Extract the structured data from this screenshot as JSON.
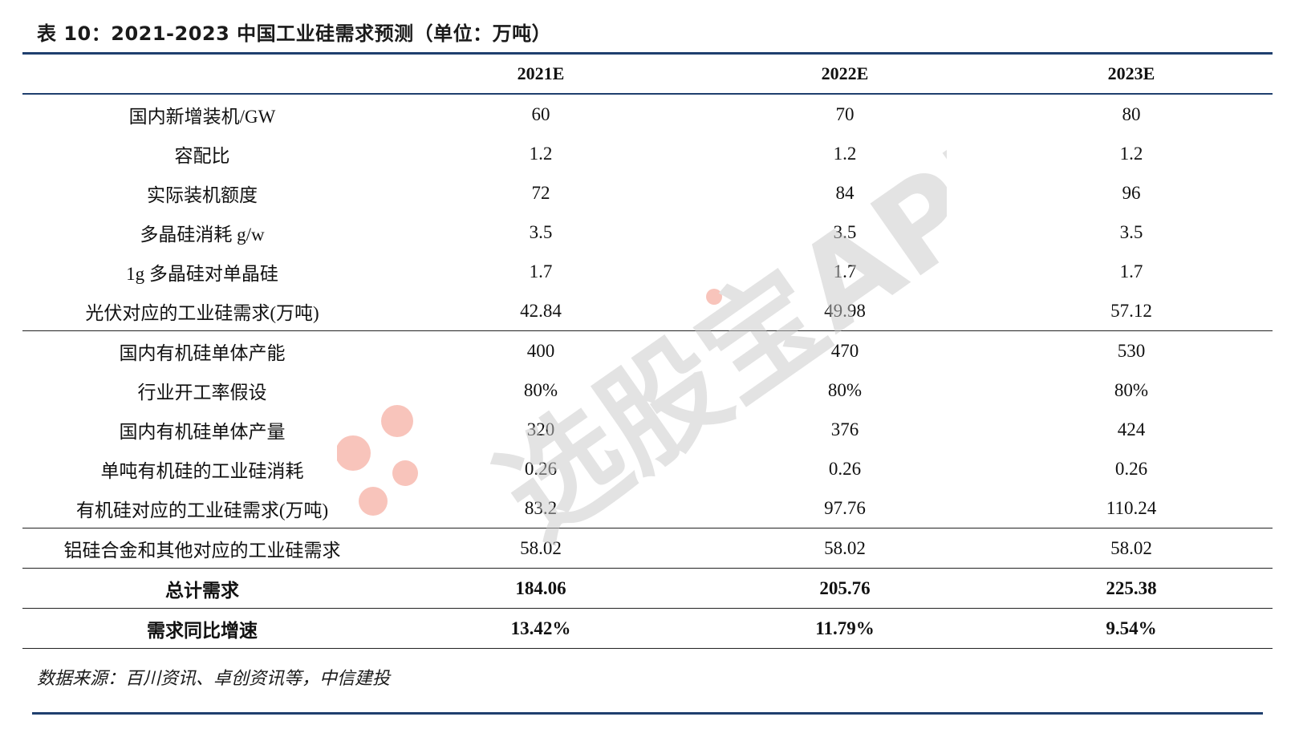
{
  "title": "表 10：2021-2023 中国工业硅需求预测（单位：万吨）",
  "watermark": {
    "text": "选股宝APP",
    "color": "#c8c8c8",
    "dot_color": "#f28a7a"
  },
  "table": {
    "columns": [
      "",
      "2021E",
      "2022E",
      "2023E"
    ],
    "groups": [
      {
        "rows": [
          {
            "label": "国内新增装机/GW",
            "values": [
              "60",
              "70",
              "80"
            ]
          },
          {
            "label": "容配比",
            "values": [
              "1.2",
              "1.2",
              "1.2"
            ]
          },
          {
            "label": "实际装机额度",
            "values": [
              "72",
              "84",
              "96"
            ]
          },
          {
            "label": "多晶硅消耗  g/w",
            "values": [
              "3.5",
              "3.5",
              "3.5"
            ]
          },
          {
            "label": "1g 多晶硅对单晶硅",
            "values": [
              "1.7",
              "1.7",
              "1.7"
            ]
          },
          {
            "label": "光伏对应的工业硅需求(万吨)",
            "values": [
              "42.84",
              "49.98",
              "57.12"
            ]
          }
        ]
      },
      {
        "rows": [
          {
            "label": "国内有机硅单体产能",
            "values": [
              "400",
              "470",
              "530"
            ]
          },
          {
            "label": "行业开工率假设",
            "values": [
              "80%",
              "80%",
              "80%"
            ]
          },
          {
            "label": "国内有机硅单体产量",
            "values": [
              "320",
              "376",
              "424"
            ]
          },
          {
            "label": "单吨有机硅的工业硅消耗",
            "values": [
              "0.26",
              "0.26",
              "0.26"
            ]
          },
          {
            "label": "有机硅对应的工业硅需求(万吨)",
            "values": [
              "83.2",
              "97.76",
              "110.24"
            ]
          }
        ]
      },
      {
        "rows": [
          {
            "label": "铝硅合金和其他对应的工业硅需求",
            "values": [
              "58.02",
              "58.02",
              "58.02"
            ]
          }
        ]
      },
      {
        "bold": true,
        "rows": [
          {
            "label": "总计需求",
            "values": [
              "184.06",
              "205.76",
              "225.38"
            ]
          }
        ]
      },
      {
        "bold": true,
        "rows": [
          {
            "label": "需求同比增速",
            "values": [
              "13.42%",
              "11.79%",
              "9.54%"
            ]
          }
        ]
      }
    ]
  },
  "source": "数据来源：百川资讯、卓创资讯等，中信建投"
}
